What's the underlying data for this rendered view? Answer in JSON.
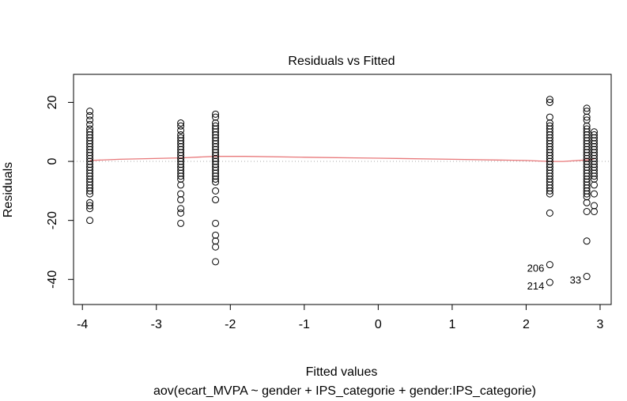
{
  "chart_data": {
    "type": "scatter",
    "title": "Residuals vs Fitted",
    "xlabel": "Fitted values",
    "sublabel": "aov(ecart_MVPA ~ gender + IPS_categorie + gender:IPS_categorie)",
    "ylabel": "Residuals",
    "xlim": [
      -4.12,
      3.15
    ],
    "ylim": [
      -48.5,
      29.5
    ],
    "x_ticks": [
      -4,
      -3,
      -2,
      -1,
      0,
      1,
      2,
      3
    ],
    "x_tick_labels": [
      "-4",
      "-3",
      "-2",
      "-1",
      "0",
      "1",
      "2",
      "3"
    ],
    "y_ticks": [
      -40,
      -20,
      0,
      20
    ],
    "y_tick_labels": [
      "-40",
      "-20",
      "0",
      "20"
    ],
    "reference_line_y": 0,
    "grid": false,
    "colors": {
      "points": "#000000",
      "smooth": "#e8787a",
      "reference": "#aaaaaa"
    },
    "groups": [
      {
        "x": -3.9,
        "residuals": [
          17,
          15.5,
          14,
          12.5,
          11,
          10,
          9,
          8,
          7,
          6,
          5,
          4,
          3,
          2,
          1,
          0,
          -1,
          -2,
          -3,
          -4,
          -5,
          -6,
          -7,
          -8,
          -9,
          -10,
          -11,
          -14,
          -15,
          -16,
          -20
        ]
      },
      {
        "x": -2.67,
        "residuals": [
          13,
          12,
          10.5,
          9,
          8,
          7,
          6,
          5,
          4,
          3,
          2,
          1,
          0,
          -1,
          -2,
          -3,
          -4,
          -5,
          -6,
          -8,
          -11,
          -13,
          -16,
          -17.5,
          -21
        ]
      },
      {
        "x": -2.2,
        "residuals": [
          16,
          15,
          13,
          12,
          11,
          10,
          9,
          8,
          7,
          6,
          5,
          4,
          3,
          2,
          1,
          0,
          -1,
          -2,
          -3,
          -4,
          -5,
          -6,
          -7,
          -10,
          -13,
          -21,
          -25,
          -27,
          -29,
          -34
        ]
      },
      {
        "x": 2.32,
        "residuals": [
          21,
          20,
          15,
          13,
          12,
          11,
          10,
          9,
          8,
          7,
          6,
          5,
          4,
          3,
          2,
          1,
          0,
          -1,
          -2,
          -3,
          -4,
          -5,
          -6,
          -7,
          -8,
          -9,
          -10,
          -11,
          -17.5,
          -35,
          -41
        ]
      },
      {
        "x": 2.82,
        "residuals": [
          18,
          17,
          15,
          14,
          12,
          11,
          10,
          9,
          8,
          7,
          6,
          5,
          4,
          3,
          2,
          1,
          0,
          -1,
          -2,
          -3,
          -4,
          -5,
          -6,
          -7,
          -8,
          -9,
          -10,
          -11,
          -12,
          -14,
          -17,
          -27,
          -39
        ]
      },
      {
        "x": 2.92,
        "residuals": [
          10,
          9,
          8,
          7,
          6,
          5,
          4,
          3,
          2,
          1,
          0,
          -1,
          -2,
          -3,
          -4,
          -5,
          -6,
          -8,
          -11,
          -15,
          -17
        ]
      }
    ],
    "smooth_line": [
      {
        "x": -3.9,
        "y": 0.3
      },
      {
        "x": -3.5,
        "y": 0.7
      },
      {
        "x": -2.67,
        "y": 1.2
      },
      {
        "x": -2.2,
        "y": 1.7
      },
      {
        "x": -1.8,
        "y": 1.7
      },
      {
        "x": -1.0,
        "y": 1.4
      },
      {
        "x": 0.0,
        "y": 1.1
      },
      {
        "x": 1.0,
        "y": 0.7
      },
      {
        "x": 2.0,
        "y": 0.3
      },
      {
        "x": 2.32,
        "y": 0.0
      },
      {
        "x": 2.5,
        "y": 0.0
      },
      {
        "x": 2.82,
        "y": 0.5
      },
      {
        "x": 2.92,
        "y": 0.8
      }
    ],
    "point_labels": [
      {
        "text": "206",
        "x": 2.32,
        "y": -35,
        "side": "left"
      },
      {
        "text": "214",
        "x": 2.32,
        "y": -41,
        "side": "left"
      },
      {
        "text": "33",
        "x": 2.82,
        "y": -39,
        "side": "left"
      }
    ]
  }
}
